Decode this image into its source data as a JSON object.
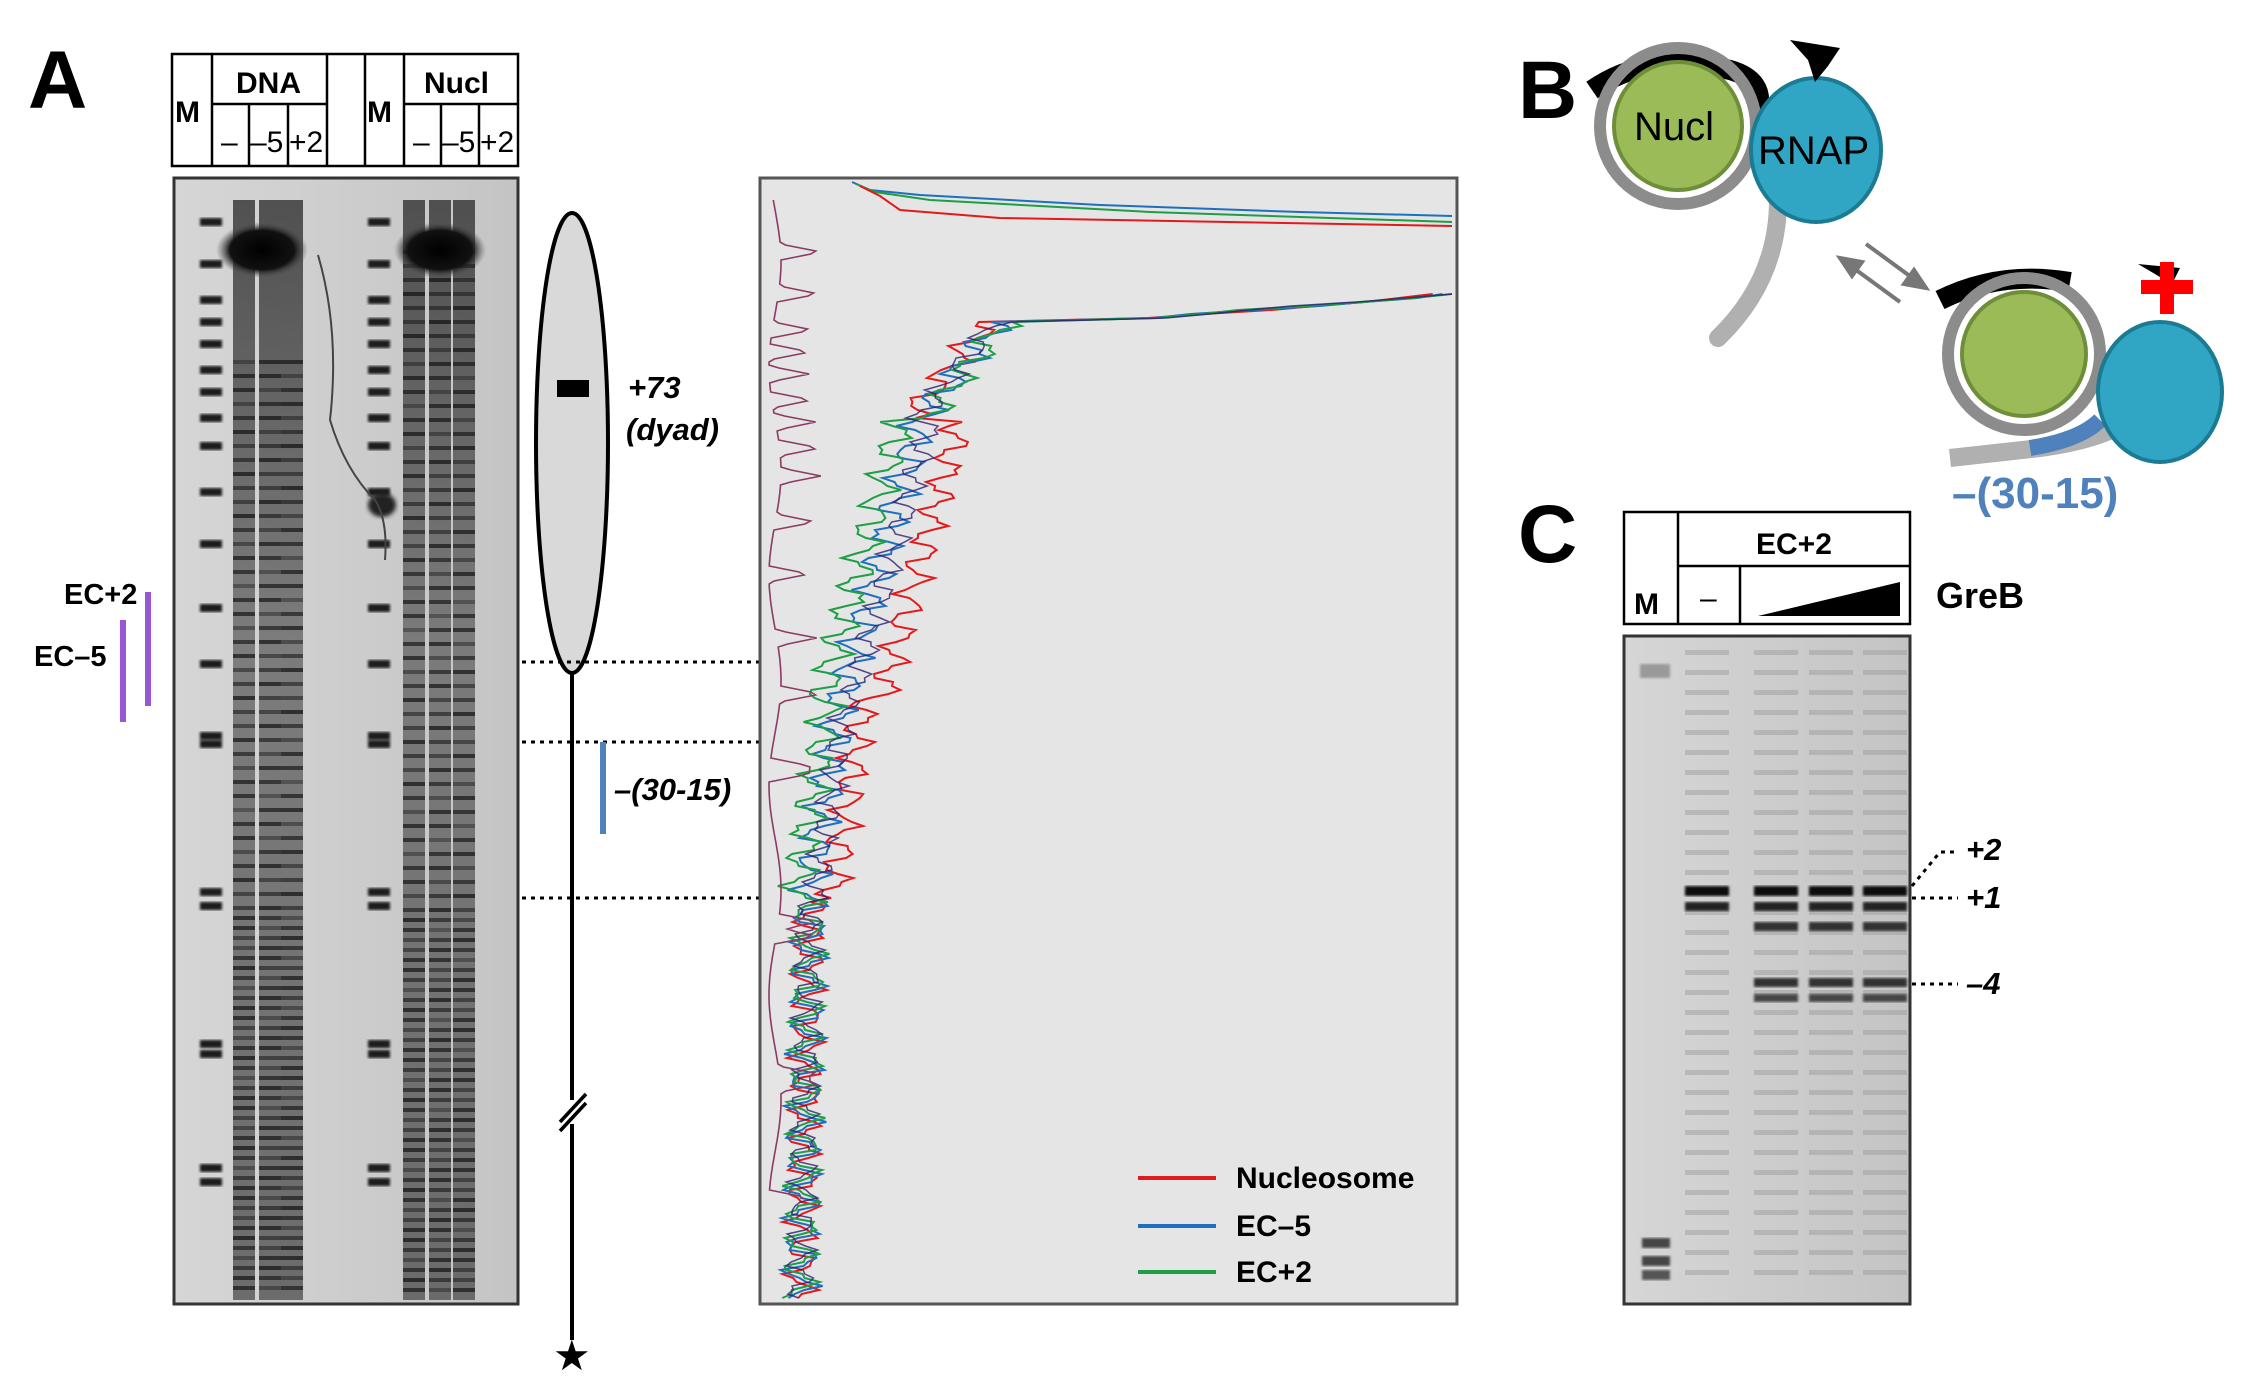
{
  "panels": {
    "a": "A",
    "b": "B",
    "c": "C"
  },
  "panel_a": {
    "header": {
      "marker": "M",
      "dna_label": "DNA",
      "nucl_label": "Nucl",
      "lanes": [
        "–",
        "–5",
        "+2"
      ]
    },
    "ec_plus2": "EC+2",
    "ec_minus5": "EC–5",
    "dyad_pos": "+73",
    "dyad_label": "(dyad)",
    "region_label": "–(30-15)",
    "legend": [
      "Nucleosome",
      "EC–5",
      "EC+2"
    ],
    "colors": {
      "nucleosome": "#e31a1c",
      "ec_minus5": "#1f6fbf",
      "ec_plus2": "#1e9e45",
      "ec_bars": "#9a55d4",
      "region_bar": "#4f81bd"
    }
  },
  "panel_b": {
    "nucl": "Nucl",
    "rnap": "RNAP",
    "region": "–(30-15)",
    "colors": {
      "nucleosome": "#9bbb59",
      "rnap": "#31a6c4",
      "dna": "#999999",
      "block": "#ff0000"
    }
  },
  "panel_c": {
    "marker": "M",
    "ec_label": "EC+2",
    "minus": "–",
    "greb": "GreB",
    "positions": [
      "+2",
      "+1",
      "–4"
    ]
  }
}
